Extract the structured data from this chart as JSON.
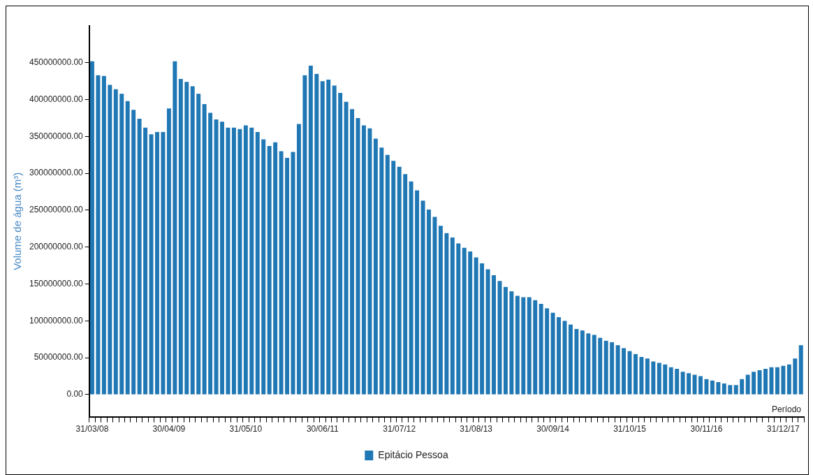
{
  "chart_data": {
    "type": "bar",
    "ylabel": "Volume de água (m³)",
    "xlabel": "Período",
    "categories": [
      "31/03/08",
      null,
      null,
      null,
      null,
      null,
      null,
      null,
      null,
      null,
      null,
      null,
      null,
      "30/04/09",
      null,
      null,
      null,
      null,
      null,
      null,
      null,
      null,
      null,
      null,
      null,
      null,
      "31/05/10",
      null,
      null,
      null,
      null,
      null,
      null,
      null,
      null,
      null,
      null,
      null,
      null,
      "30/06/11",
      null,
      null,
      null,
      null,
      null,
      null,
      null,
      null,
      null,
      null,
      null,
      null,
      "31/07/12",
      null,
      null,
      null,
      null,
      null,
      null,
      null,
      null,
      null,
      null,
      null,
      null,
      "31/08/13",
      null,
      null,
      null,
      null,
      null,
      null,
      null,
      null,
      null,
      null,
      null,
      null,
      "30/09/14",
      null,
      null,
      null,
      null,
      null,
      null,
      null,
      null,
      null,
      null,
      null,
      null,
      "31/10/15",
      null,
      null,
      null,
      null,
      null,
      null,
      null,
      null,
      null,
      null,
      null,
      null,
      "30/11/16",
      null,
      null,
      null,
      null,
      null,
      null,
      null,
      null,
      null,
      null,
      null,
      null,
      "31/12/17",
      null,
      null,
      null
    ],
    "series": [
      {
        "name": "Epitácio Pessoa",
        "color": "#1f77b4",
        "values": [
          452000000,
          433000000,
          432000000,
          420000000,
          414000000,
          408000000,
          398000000,
          386000000,
          374000000,
          362000000,
          353000000,
          356000000,
          356000000,
          388000000,
          452000000,
          428000000,
          424000000,
          418000000,
          408000000,
          394000000,
          382000000,
          373000000,
          370000000,
          362000000,
          362000000,
          360000000,
          365000000,
          362000000,
          356000000,
          346000000,
          337000000,
          342000000,
          330000000,
          321000000,
          329000000,
          367000000,
          433000000,
          446000000,
          435000000,
          425000000,
          427000000,
          419000000,
          409000000,
          397000000,
          387000000,
          375000000,
          365000000,
          361000000,
          347000000,
          335000000,
          325000000,
          317000000,
          309000000,
          299000000,
          289000000,
          277000000,
          263000000,
          251000000,
          241000000,
          229000000,
          219000000,
          213000000,
          205000000,
          199000000,
          194000000,
          186000000,
          178000000,
          170000000,
          162000000,
          154000000,
          146000000,
          140000000,
          134000000,
          132000000,
          132000000,
          128000000,
          123000000,
          117000000,
          111000000,
          105000000,
          100000000,
          95000000,
          89000000,
          87000000,
          83000000,
          81000000,
          77000000,
          73000000,
          71000000,
          67000000,
          63000000,
          59000000,
          55000000,
          51000000,
          49000000,
          45000000,
          43000000,
          41000000,
          37000000,
          35000000,
          31000000,
          29000000,
          27000000,
          25000000,
          21000000,
          19000000,
          17000000,
          15000000,
          13000000,
          13000000,
          21000000,
          27000000,
          31000000,
          33000000,
          35000000,
          37000000,
          37000000,
          39000000,
          41000000,
          49000000,
          67000000
        ]
      }
    ],
    "ylim": [
      -30000000,
      500000000
    ],
    "yticks": [
      {
        "value": 0,
        "label": "0.00"
      },
      {
        "value": 50000000,
        "label": "50000000.00"
      },
      {
        "value": 100000000,
        "label": "100000000.00"
      },
      {
        "value": 150000000,
        "label": "150000000.00"
      },
      {
        "value": 200000000,
        "label": "200000000.00"
      },
      {
        "value": 250000000,
        "label": "250000000.00"
      },
      {
        "value": 300000000,
        "label": "300000000.00"
      },
      {
        "value": 350000000,
        "label": "350000000.00"
      },
      {
        "value": 400000000,
        "label": "400000000.00"
      },
      {
        "value": 450000000,
        "label": "450000000.00"
      }
    ],
    "grid": false,
    "legend": "bottom"
  }
}
